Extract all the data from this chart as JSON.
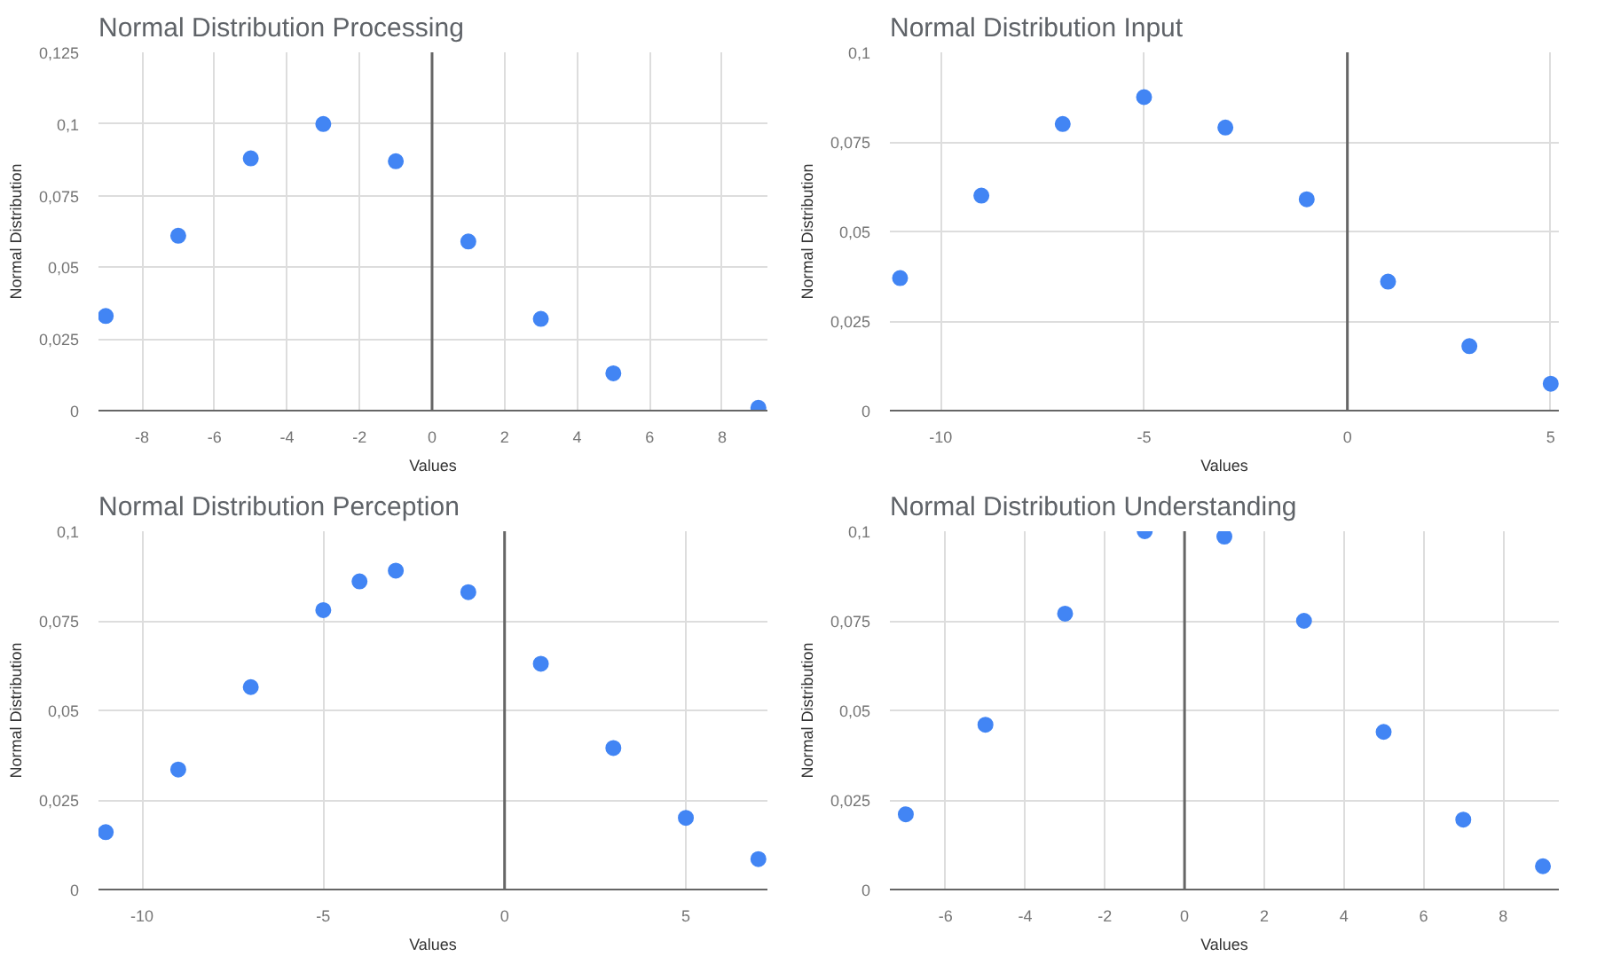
{
  "chart_data": [
    {
      "type": "scatter",
      "title": "Normal Distribution Processing",
      "xlabel": "Values",
      "ylabel": "Normal Distribution",
      "marker": "circle",
      "grid": true,
      "x": [
        -9,
        -7,
        -5,
        -3,
        -1,
        1,
        3,
        5,
        9
      ],
      "series": [
        {
          "color": "#4285f4",
          "values": [
            0.033,
            0.061,
            0.088,
            0.1,
            0.087,
            0.059,
            0.032,
            0.013,
            0.001
          ]
        }
      ],
      "xlim": [
        -9.2,
        9.25
      ],
      "xticks": [
        -8,
        -6,
        -4,
        -2,
        0,
        2,
        4,
        6,
        8
      ],
      "ylim": [
        0,
        0.125
      ],
      "yticks": [
        0,
        {
          "value": 0.025,
          "label": "0,025"
        },
        {
          "value": 0.05,
          "label": "0,05"
        },
        {
          "value": 0.075,
          "label": "0,075"
        },
        {
          "value": 0.1,
          "label": "0,1"
        },
        {
          "value": 0.125,
          "label": "0,125"
        }
      ],
      "ref_lines": [
        {
          "axis": "x",
          "value": 0,
          "color": "#666666"
        }
      ]
    },
    {
      "type": "scatter",
      "title": "Normal Distribution Input",
      "xlabel": "Values",
      "ylabel": "Normal Distribution",
      "marker": "circle",
      "grid": true,
      "x": [
        -11,
        -9,
        -7,
        -5,
        -3,
        -1,
        1,
        3,
        5
      ],
      "series": [
        {
          "color": "#4285f4",
          "values": [
            0.037,
            0.06,
            0.08,
            0.0875,
            0.079,
            0.059,
            0.036,
            0.018,
            0.0075
          ]
        }
      ],
      "xlim": [
        -11.25,
        5.2
      ],
      "xticks": [
        -10,
        -5,
        0,
        5
      ],
      "ylim": [
        0,
        0.1
      ],
      "yticks": [
        0,
        {
          "value": 0.025,
          "label": "0,025"
        },
        {
          "value": 0.05,
          "label": "0,05"
        },
        {
          "value": 0.075,
          "label": "0,075"
        },
        {
          "value": 0.1,
          "label": "0,1"
        }
      ],
      "ref_lines": [
        {
          "axis": "x",
          "value": 0,
          "color": "#666666"
        }
      ]
    },
    {
      "type": "scatter",
      "title": "Normal Distribution Perception",
      "xlabel": "Values",
      "ylabel": "Normal Distribution",
      "marker": "circle",
      "grid": true,
      "x": [
        -11,
        -9,
        -7,
        -5,
        -4,
        -3,
        -1,
        1,
        3,
        5,
        7
      ],
      "series": [
        {
          "color": "#4285f4",
          "values": [
            0.016,
            0.0335,
            0.0565,
            0.078,
            0.086,
            0.089,
            0.083,
            0.063,
            0.0395,
            0.02,
            0.0085
          ]
        }
      ],
      "xlim": [
        -11.2,
        7.25
      ],
      "xticks": [
        -10,
        -5,
        0,
        5
      ],
      "ylim": [
        0,
        0.1
      ],
      "yticks": [
        0,
        {
          "value": 0.025,
          "label": "0,025"
        },
        {
          "value": 0.05,
          "label": "0,05"
        },
        {
          "value": 0.075,
          "label": "0,075"
        },
        {
          "value": 0.1,
          "label": "0,1"
        }
      ],
      "ref_lines": [
        {
          "axis": "x",
          "value": 0,
          "color": "#666666"
        }
      ]
    },
    {
      "type": "scatter",
      "title": "Normal Distribution Understanding",
      "xlabel": "Values",
      "ylabel": "Normal Distribution",
      "marker": "circle",
      "grid": true,
      "x": [
        -7,
        -5,
        -3,
        -1,
        1,
        3,
        5,
        7,
        9
      ],
      "series": [
        {
          "color": "#4285f4",
          "values": [
            0.021,
            0.046,
            0.077,
            0.1,
            0.0985,
            0.075,
            0.044,
            0.0195,
            0.0065
          ]
        }
      ],
      "xlim": [
        -7.4,
        9.4
      ],
      "xticks": [
        -6,
        -4,
        -2,
        0,
        2,
        4,
        6,
        8
      ],
      "ylim": [
        0,
        0.1
      ],
      "yticks": [
        0,
        {
          "value": 0.025,
          "label": "0,025"
        },
        {
          "value": 0.05,
          "label": "0,05"
        },
        {
          "value": 0.075,
          "label": "0,075"
        },
        {
          "value": 0.1,
          "label": "0,1"
        }
      ],
      "ref_lines": [
        {
          "axis": "x",
          "value": 0,
          "color": "#666666"
        }
      ]
    }
  ]
}
